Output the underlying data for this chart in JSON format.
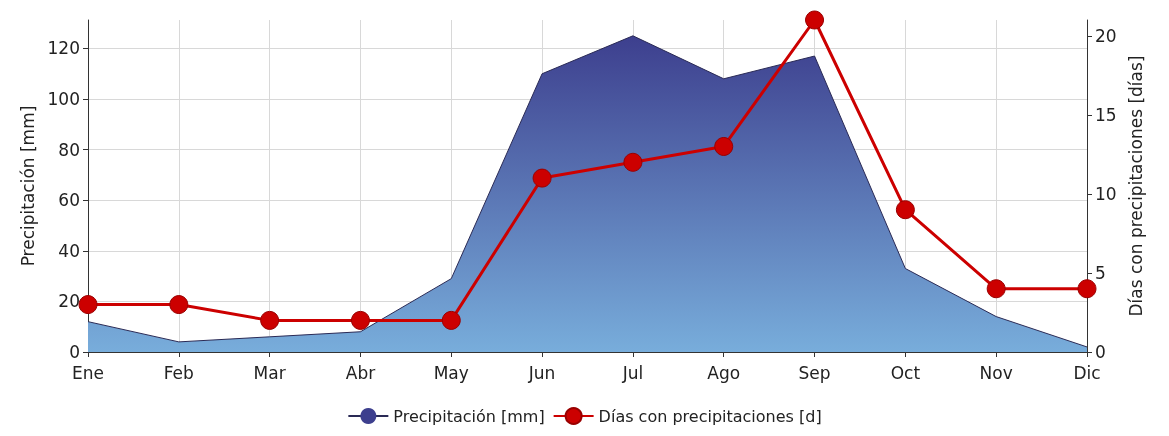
{
  "chart_data": {
    "type": "area",
    "categories": [
      "Ene",
      "Feb",
      "Mar",
      "Abr",
      "May",
      "Jun",
      "Jul",
      "Ago",
      "Sep",
      "Oct",
      "Nov",
      "Dic"
    ],
    "ylabel": "Precipitación [mm]",
    "y2label": "Días con precipitaciones [días]",
    "series": [
      {
        "name": "Precipitación [mm]",
        "color": "#3d3f8e",
        "values": [
          12,
          4,
          6,
          8,
          29,
          110,
          125,
          108,
          117,
          33,
          14,
          2
        ]
      },
      {
        "name": "Días con precipitaciones [d]",
        "type": "line",
        "axis": "y2",
        "color": "#cc0000",
        "marker": "circle",
        "values": [
          3,
          3,
          2,
          2,
          2,
          11,
          12,
          13,
          21,
          9,
          4,
          4
        ]
      }
    ],
    "ylim": [
      0,
      131.25
    ],
    "yticks": [
      0,
      20,
      40,
      60,
      80,
      100,
      120
    ],
    "y2lim": [
      0,
      21
    ],
    "y2ticks": [
      0,
      5,
      10,
      15,
      20
    ],
    "grid": true,
    "legend": "bottom"
  }
}
